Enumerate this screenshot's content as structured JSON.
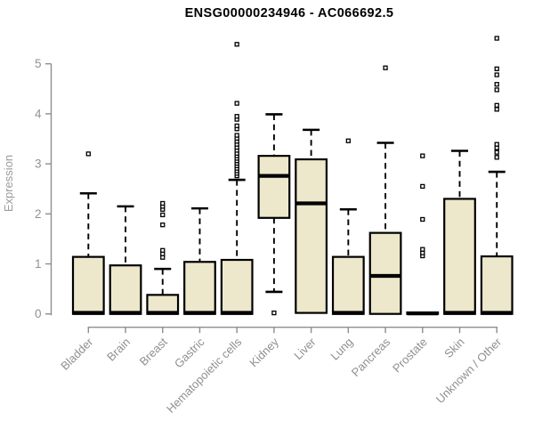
{
  "title": "ENSG00000234946 - AC066692.5",
  "chart_data": {
    "type": "boxplot",
    "title": "ENSG00000234946 - AC066692.5",
    "xlabel": "",
    "ylabel": "Expression",
    "ylim": [
      0,
      5
    ],
    "yticks": [
      0,
      1,
      2,
      3,
      4,
      5
    ],
    "grid": false,
    "legend": "none",
    "colors": {
      "box_fill": "#ede7cb",
      "box_stroke": "#000000",
      "median": "#000000",
      "whisker": "#000000",
      "axis": "#8e8e8e",
      "tick_label": "#919191",
      "axis_label": "#9b9b9b",
      "title": "#000000",
      "outlier_fill": "#ffffff",
      "outlier_stroke": "#000000"
    },
    "categories": [
      "Bladder",
      "Brain",
      "Breast",
      "Gastric",
      "Hematopoietic cells",
      "Kidney",
      "Liver",
      "Lung",
      "Pancreas",
      "Prostate",
      "Skin",
      "Unknown / Other"
    ],
    "boxes": [
      {
        "category": "Bladder",
        "q1": 0,
        "median": 0.02,
        "q3": 1.14,
        "whisker_low": 0,
        "whisker_high": 2.41,
        "outliers": [
          3.2
        ]
      },
      {
        "category": "Brain",
        "q1": 0,
        "median": 0.02,
        "q3": 0.97,
        "whisker_low": 0,
        "whisker_high": 2.15,
        "outliers": []
      },
      {
        "category": "Breast",
        "q1": 0,
        "median": 0.02,
        "q3": 0.38,
        "whisker_low": 0,
        "whisker_high": 0.9,
        "outliers": [
          1.13,
          1.2,
          1.27,
          1.78,
          1.98,
          2.09,
          2.15,
          2.21
        ]
      },
      {
        "category": "Gastric",
        "q1": 0,
        "median": 0.02,
        "q3": 1.04,
        "whisker_low": 0,
        "whisker_high": 2.11,
        "outliers": []
      },
      {
        "category": "Hematopoietic cells",
        "q1": 0,
        "median": 0.02,
        "q3": 1.08,
        "whisker_low": 0,
        "whisker_high": 2.68,
        "outliers": [
          2.76,
          2.81,
          2.86,
          2.91,
          2.96,
          3.01,
          3.06,
          3.11,
          3.16,
          3.21,
          3.27,
          3.33,
          3.39,
          3.45,
          3.51,
          3.57,
          3.7,
          3.76,
          3.89,
          3.95,
          4.21,
          5.39
        ]
      },
      {
        "category": "Kidney",
        "q1": 1.92,
        "median": 2.76,
        "q3": 3.16,
        "whisker_low": 0.44,
        "whisker_high": 3.99,
        "outliers": [
          0.02
        ]
      },
      {
        "category": "Liver",
        "q1": 0.02,
        "median": 2.21,
        "q3": 3.09,
        "whisker_low": 0.02,
        "whisker_high": 3.68,
        "outliers": []
      },
      {
        "category": "Lung",
        "q1": 0,
        "median": 0.02,
        "q3": 1.14,
        "whisker_low": 0,
        "whisker_high": 2.09,
        "outliers": [
          3.46
        ]
      },
      {
        "category": "Pancreas",
        "q1": 0,
        "median": 0.76,
        "q3": 1.62,
        "whisker_low": 0,
        "whisker_high": 3.42,
        "outliers": [
          4.92
        ]
      },
      {
        "category": "Prostate",
        "q1": 0,
        "median": 0.01,
        "q3": 0.03,
        "whisker_low": 0,
        "whisker_high": 0.03,
        "outliers": [
          1.16,
          1.22,
          1.29,
          1.89,
          2.55,
          3.16
        ]
      },
      {
        "category": "Skin",
        "q1": 0,
        "median": 0.02,
        "q3": 2.3,
        "whisker_low": 0,
        "whisker_high": 3.26,
        "outliers": []
      },
      {
        "category": "Unknown / Other",
        "q1": 0,
        "median": 0.02,
        "q3": 1.15,
        "whisker_low": 0,
        "whisker_high": 2.84,
        "outliers": [
          3.13,
          3.23,
          3.32,
          3.39,
          4.09,
          4.17,
          4.48,
          4.59,
          4.78,
          4.9,
          5.51
        ]
      }
    ]
  }
}
